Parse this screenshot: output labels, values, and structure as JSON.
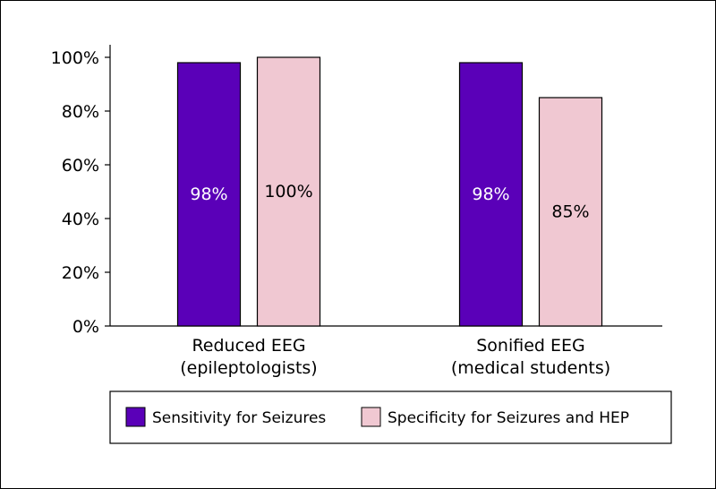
{
  "chart_data": {
    "type": "bar",
    "categories": [
      [
        "Reduced EEG",
        "(epileptologists)"
      ],
      [
        "Sonified EEG",
        "(medical students)"
      ]
    ],
    "series": [
      {
        "name": "Sensitivity for Seizures",
        "color": "#5a00b8",
        "label_color": "#ffffff",
        "values": [
          98,
          98
        ],
        "value_labels": [
          "98%",
          "98%"
        ]
      },
      {
        "name": "Specificity for Seizures and HEP",
        "color": "#f0c8d2",
        "label_color": "#000000",
        "values": [
          100,
          85
        ],
        "value_labels": [
          "100%",
          "85%"
        ]
      }
    ],
    "ylim": [
      0,
      100
    ],
    "yticks": [
      0,
      20,
      40,
      60,
      80,
      100
    ],
    "ytick_labels": [
      "0%",
      "20%",
      "40%",
      "60%",
      "80%",
      "100%"
    ],
    "grid": false,
    "legend_position": "bottom"
  }
}
